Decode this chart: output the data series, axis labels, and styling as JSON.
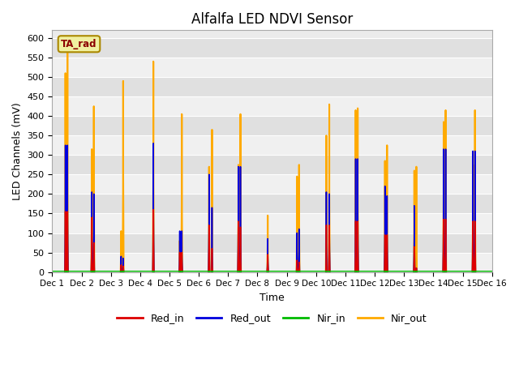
{
  "title": "Alfalfa LED NDVI Sensor",
  "ylabel": "LED Channels (mV)",
  "xlabel": "Time",
  "ylim": [
    0,
    620
  ],
  "yticks": [
    0,
    50,
    100,
    150,
    200,
    250,
    300,
    350,
    400,
    450,
    500,
    550,
    600
  ],
  "bg_color": "#ebebeb",
  "legend_label": "TA_rad",
  "series": {
    "Red_in": {
      "color": "#dd0000",
      "lw": 1.0
    },
    "Red_out": {
      "color": "#0000dd",
      "lw": 1.0
    },
    "Nir_in": {
      "color": "#00bb00",
      "lw": 1.0
    },
    "Nir_out": {
      "color": "#ffaa00",
      "lw": 1.0
    }
  },
  "events": [
    {
      "day": 1.45,
      "Red_in": 155,
      "Red_out": 325,
      "Nir_in": 2,
      "Nir_out": 510
    },
    {
      "day": 1.52,
      "Red_in": 155,
      "Red_out": 325,
      "Nir_in": 2,
      "Nir_out": 565
    },
    {
      "day": 2.35,
      "Red_in": 140,
      "Red_out": 205,
      "Nir_in": 2,
      "Nir_out": 315
    },
    {
      "day": 2.42,
      "Red_in": 75,
      "Red_out": 200,
      "Nir_in": 2,
      "Nir_out": 425
    },
    {
      "day": 3.35,
      "Red_in": 18,
      "Red_out": 40,
      "Nir_in": 2,
      "Nir_out": 105
    },
    {
      "day": 3.42,
      "Red_in": 15,
      "Red_out": 35,
      "Nir_in": 2,
      "Nir_out": 490
    },
    {
      "day": 4.45,
      "Red_in": 160,
      "Red_out": 330,
      "Nir_in": 2,
      "Nir_out": 540
    },
    {
      "day": 5.35,
      "Red_in": 50,
      "Red_out": 105,
      "Nir_in": 2,
      "Nir_out": 80
    },
    {
      "day": 5.42,
      "Red_in": 50,
      "Red_out": 105,
      "Nir_in": 2,
      "Nir_out": 405
    },
    {
      "day": 6.35,
      "Red_in": 120,
      "Red_out": 250,
      "Nir_in": 2,
      "Nir_out": 270
    },
    {
      "day": 6.45,
      "Red_in": 60,
      "Red_out": 165,
      "Nir_in": 2,
      "Nir_out": 365
    },
    {
      "day": 7.35,
      "Red_in": 130,
      "Red_out": 270,
      "Nir_in": 2,
      "Nir_out": 275
    },
    {
      "day": 7.42,
      "Red_in": 115,
      "Red_out": 270,
      "Nir_in": 2,
      "Nir_out": 405
    },
    {
      "day": 8.35,
      "Red_in": 45,
      "Red_out": 85,
      "Nir_in": 2,
      "Nir_out": 145
    },
    {
      "day": 9.35,
      "Red_in": 30,
      "Red_out": 100,
      "Nir_in": 2,
      "Nir_out": 245
    },
    {
      "day": 9.42,
      "Red_in": 25,
      "Red_out": 110,
      "Nir_in": 2,
      "Nir_out": 275
    },
    {
      "day": 10.35,
      "Red_in": 120,
      "Red_out": 205,
      "Nir_in": 2,
      "Nir_out": 350
    },
    {
      "day": 10.45,
      "Red_in": 120,
      "Red_out": 200,
      "Nir_in": 2,
      "Nir_out": 430
    },
    {
      "day": 11.35,
      "Red_in": 130,
      "Red_out": 290,
      "Nir_in": 2,
      "Nir_out": 415
    },
    {
      "day": 11.42,
      "Red_in": 130,
      "Red_out": 290,
      "Nir_in": 2,
      "Nir_out": 420
    },
    {
      "day": 12.35,
      "Red_in": 95,
      "Red_out": 220,
      "Nir_in": 2,
      "Nir_out": 285
    },
    {
      "day": 12.42,
      "Red_in": 95,
      "Red_out": 195,
      "Nir_in": 2,
      "Nir_out": 325
    },
    {
      "day": 13.35,
      "Red_in": 65,
      "Red_out": 170,
      "Nir_in": 2,
      "Nir_out": 260
    },
    {
      "day": 13.42,
      "Red_in": 10,
      "Red_out": 10,
      "Nir_in": 2,
      "Nir_out": 270
    },
    {
      "day": 14.35,
      "Red_in": 135,
      "Red_out": 315,
      "Nir_in": 2,
      "Nir_out": 385
    },
    {
      "day": 14.42,
      "Red_in": 135,
      "Red_out": 315,
      "Nir_in": 2,
      "Nir_out": 415
    },
    {
      "day": 15.35,
      "Red_in": 130,
      "Red_out": 310,
      "Nir_in": 2,
      "Nir_out": 275
    },
    {
      "day": 15.42,
      "Red_in": 130,
      "Red_out": 310,
      "Nir_in": 2,
      "Nir_out": 415
    }
  ],
  "xtick_labels": [
    "Dec 1",
    "Dec 2",
    "Dec 3",
    "Dec 4",
    "Dec 5",
    "Dec 6",
    "Dec 7",
    "Dec 8",
    "Dec 9",
    "Dec 10",
    "Dec 11",
    "Dec 12",
    "Dec 13",
    "Dec 14",
    "Dec 15",
    "Dec 16"
  ]
}
